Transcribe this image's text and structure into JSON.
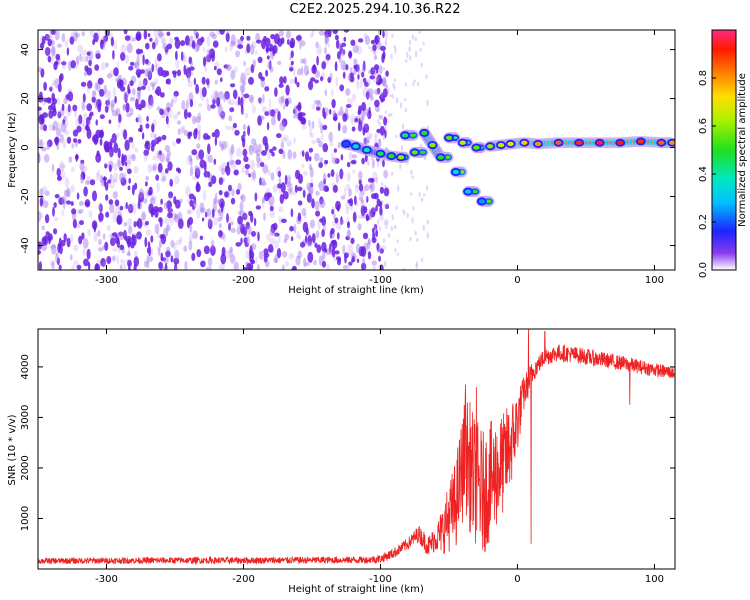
{
  "title": "C2E2.2025.294.10.36.R22",
  "colors": {
    "dot": "#7b2be2",
    "snr_line": "#ee2222",
    "frame": "#000000"
  },
  "chart_data": [
    {
      "type": "heatmap",
      "id": "spectrogram",
      "xlabel": "Height of straight line (km)",
      "ylabel": "Frequency (Hz)",
      "xlim": [
        -350,
        115
      ],
      "ylim": [
        -50,
        48
      ],
      "xticks": [
        -300,
        -200,
        -100,
        0,
        100
      ],
      "yticks": [
        -40,
        -20,
        0,
        20,
        40
      ],
      "noise_region": {
        "x_range": [
          -350,
          -110
        ],
        "y_range": [
          -50,
          48
        ]
      },
      "signal_trace": [
        {
          "x": -125,
          "y": 1.5,
          "amp": 0.2
        },
        {
          "x": -118,
          "y": 0.5,
          "amp": 0.35
        },
        {
          "x": -110,
          "y": -1,
          "amp": 0.4
        },
        {
          "x": -100,
          "y": -2.5,
          "amp": 0.45
        },
        {
          "x": -92,
          "y": -3.5,
          "amp": 0.5
        },
        {
          "x": -85,
          "y": -4,
          "amp": 0.6
        },
        {
          "x": -82,
          "y": 5,
          "amp": 0.45
        },
        {
          "x": -75,
          "y": -2,
          "amp": 0.55
        },
        {
          "x": -68,
          "y": 6,
          "amp": 0.5
        },
        {
          "x": -62,
          "y": 1,
          "amp": 0.6
        },
        {
          "x": -56,
          "y": -4,
          "amp": 0.5
        },
        {
          "x": -50,
          "y": 4,
          "amp": 0.55
        },
        {
          "x": -45,
          "y": -10,
          "amp": 0.35
        },
        {
          "x": -40,
          "y": 2,
          "amp": 0.65
        },
        {
          "x": -36,
          "y": -18,
          "amp": 0.3
        },
        {
          "x": -30,
          "y": 0,
          "amp": 0.55
        },
        {
          "x": -26,
          "y": -22,
          "amp": 0.25
        },
        {
          "x": -20,
          "y": 0.5,
          "amp": 0.6
        },
        {
          "x": -12,
          "y": 1,
          "amp": 0.65
        },
        {
          "x": -5,
          "y": 1.5,
          "amp": 0.7
        },
        {
          "x": 5,
          "y": 2,
          "amp": 0.75
        },
        {
          "x": 15,
          "y": 1.5,
          "amp": 0.8
        },
        {
          "x": 30,
          "y": 2,
          "amp": 0.85
        },
        {
          "x": 45,
          "y": 2,
          "amp": 0.9
        },
        {
          "x": 60,
          "y": 2,
          "amp": 0.95
        },
        {
          "x": 75,
          "y": 2,
          "amp": 0.92
        },
        {
          "x": 90,
          "y": 2.5,
          "amp": 0.9
        },
        {
          "x": 105,
          "y": 2,
          "amp": 0.85
        },
        {
          "x": 113,
          "y": 2,
          "amp": 0.8
        }
      ]
    },
    {
      "type": "colorbar",
      "id": "colorbar",
      "label": "Normalized spectral amplitude",
      "range": [
        0,
        1
      ],
      "tick_labels": [
        "0.0",
        "0.2",
        "0.4",
        "0.6",
        "0.8"
      ],
      "ticks": [
        0,
        0.2,
        0.4,
        0.6,
        0.8
      ]
    },
    {
      "type": "line",
      "id": "snr",
      "xlabel": "Height of straight line (km)",
      "ylabel": "SNR (10 * v/v)",
      "xlim": [
        -350,
        115
      ],
      "ylim": [
        0,
        4750
      ],
      "xticks": [
        -300,
        -200,
        -100,
        0,
        100
      ],
      "yticks": [
        1000,
        2000,
        3000,
        4000
      ],
      "envelope": [
        {
          "x": -350,
          "y": 160
        },
        {
          "x": -300,
          "y": 165
        },
        {
          "x": -250,
          "y": 170
        },
        {
          "x": -200,
          "y": 170
        },
        {
          "x": -150,
          "y": 175
        },
        {
          "x": -110,
          "y": 180
        },
        {
          "x": -100,
          "y": 200
        },
        {
          "x": -90,
          "y": 320
        },
        {
          "x": -80,
          "y": 500
        },
        {
          "x": -72,
          "y": 700
        },
        {
          "x": -65,
          "y": 450
        },
        {
          "x": -55,
          "y": 750
        },
        {
          "x": -45,
          "y": 1300
        },
        {
          "x": -38,
          "y": 2300
        },
        {
          "x": -32,
          "y": 1800
        },
        {
          "x": -25,
          "y": 1500
        },
        {
          "x": -18,
          "y": 1800
        },
        {
          "x": -10,
          "y": 2100
        },
        {
          "x": -2,
          "y": 2700
        },
        {
          "x": 5,
          "y": 3500
        },
        {
          "x": 12,
          "y": 3950
        },
        {
          "x": 20,
          "y": 4200
        },
        {
          "x": 30,
          "y": 4280
        },
        {
          "x": 45,
          "y": 4230
        },
        {
          "x": 60,
          "y": 4150
        },
        {
          "x": 75,
          "y": 4080
        },
        {
          "x": 90,
          "y": 4000
        },
        {
          "x": 105,
          "y": 3920
        },
        {
          "x": 115,
          "y": 3880
        }
      ],
      "noise": [
        {
          "x": -350,
          "y": 60
        },
        {
          "x": -110,
          "y": 70
        },
        {
          "x": -80,
          "y": 120
        },
        {
          "x": -60,
          "y": 250
        },
        {
          "x": -45,
          "y": 900
        },
        {
          "x": -35,
          "y": 1300
        },
        {
          "x": -20,
          "y": 1200
        },
        {
          "x": -5,
          "y": 900
        },
        {
          "x": 5,
          "y": 350
        },
        {
          "x": 15,
          "y": 180
        },
        {
          "x": 115,
          "y": 130
        }
      ],
      "spikes": [
        {
          "x": -38,
          "y": 3650
        },
        {
          "x": -30,
          "y": 3600
        },
        {
          "x": 8,
          "y": 4800
        },
        {
          "x": 10,
          "y": 500
        },
        {
          "x": 20,
          "y": 4700
        },
        {
          "x": 82,
          "y": 3250
        }
      ]
    }
  ]
}
